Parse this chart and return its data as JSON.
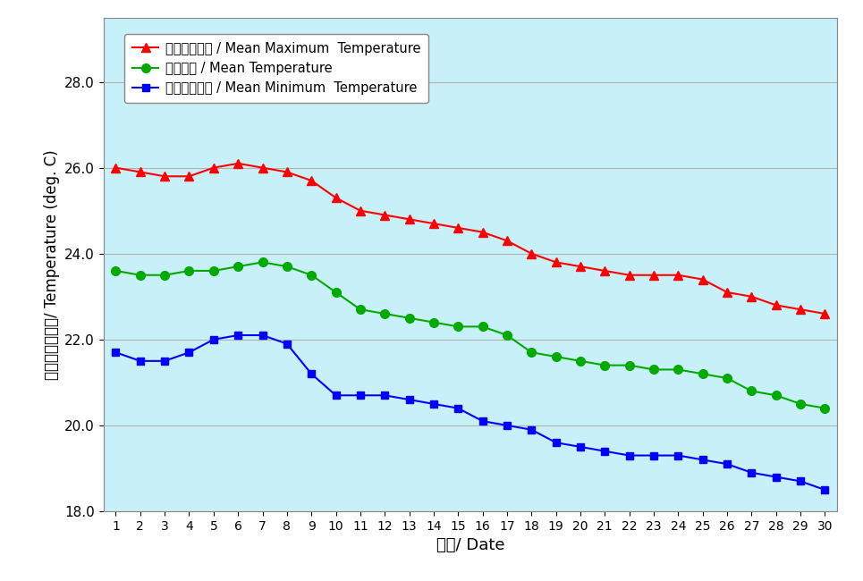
{
  "days": [
    1,
    2,
    3,
    4,
    5,
    6,
    7,
    8,
    9,
    10,
    11,
    12,
    13,
    14,
    15,
    16,
    17,
    18,
    19,
    20,
    21,
    22,
    23,
    24,
    25,
    26,
    27,
    28,
    29,
    30
  ],
  "mean_max": [
    26.0,
    25.9,
    25.8,
    25.8,
    26.0,
    26.1,
    26.0,
    25.9,
    25.7,
    25.3,
    25.0,
    24.9,
    24.8,
    24.7,
    24.6,
    24.5,
    24.3,
    24.0,
    23.8,
    23.7,
    23.6,
    23.5,
    23.5,
    23.5,
    23.4,
    23.1,
    23.0,
    22.8,
    22.7,
    22.6
  ],
  "mean_temp": [
    23.6,
    23.5,
    23.5,
    23.6,
    23.6,
    23.7,
    23.8,
    23.7,
    23.5,
    23.1,
    22.7,
    22.6,
    22.5,
    22.4,
    22.3,
    22.3,
    22.1,
    21.7,
    21.6,
    21.5,
    21.4,
    21.4,
    21.3,
    21.3,
    21.2,
    21.1,
    20.8,
    20.7,
    20.5,
    20.4
  ],
  "mean_min": [
    21.7,
    21.5,
    21.5,
    21.7,
    22.0,
    22.1,
    22.1,
    21.9,
    21.2,
    20.7,
    20.7,
    20.7,
    20.6,
    20.5,
    20.4,
    20.1,
    20.0,
    19.9,
    19.6,
    19.5,
    19.4,
    19.3,
    19.3,
    19.3,
    19.2,
    19.1,
    18.9,
    18.8,
    18.7,
    18.5
  ],
  "mean_max_color": "#FF0000",
  "mean_temp_color": "#00AA00",
  "mean_min_color": "#0000FF",
  "figure_bg_color": "#FFFFFF",
  "plot_bg_color": "#C8F0F8",
  "grid_color": "#B0B0B0",
  "ylim": [
    18.0,
    29.5
  ],
  "yticks": [
    18.0,
    20.0,
    22.0,
    24.0,
    26.0,
    28.0
  ],
  "ylabel": "溫度（攝氏度）/ Temperature (deg. C)",
  "xlabel": "日期/ Date",
  "legend_max": "平均最高氣溫 / Mean Maximum  Temperature",
  "legend_mean": "平均氣溫 / Mean Temperature",
  "legend_min": "平均最低氣溫 / Mean Minimum  Temperature"
}
